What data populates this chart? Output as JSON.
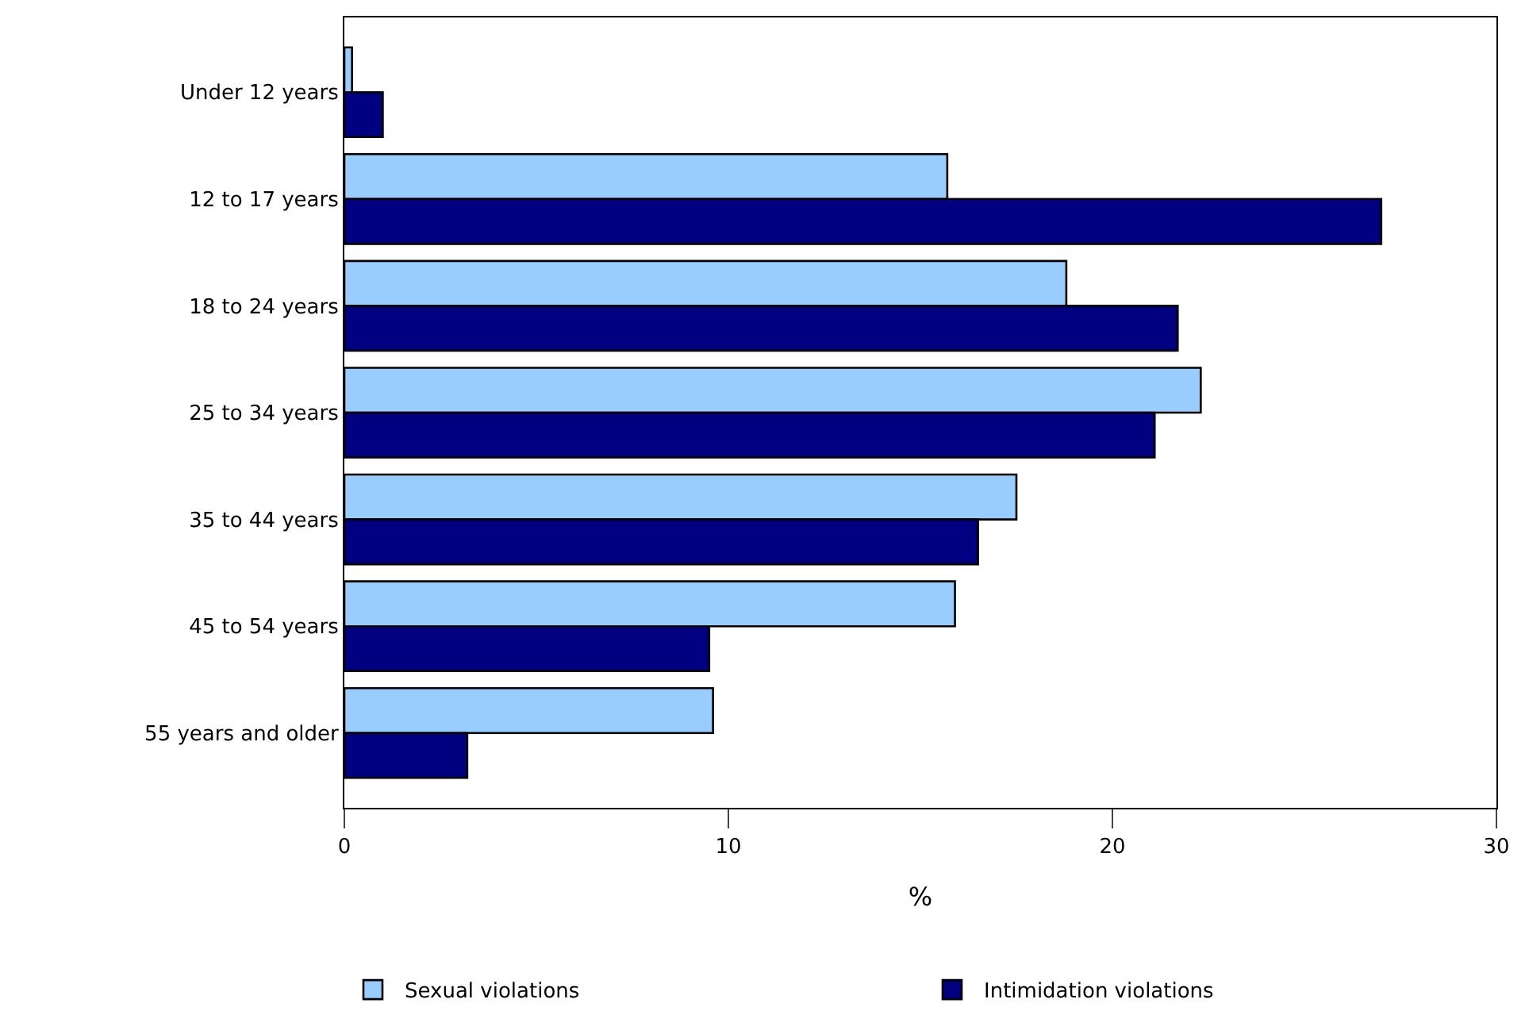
{
  "chart_data": {
    "type": "bar",
    "orientation": "horizontal",
    "xlabel": "%",
    "categories": [
      "Under 12 years",
      "12 to 17 years",
      "18 to 24 years",
      "25 to 34 years",
      "35 to 44 years",
      "45 to 54 years",
      "55 years and older"
    ],
    "series": [
      {
        "name": "Sexual violations",
        "color": "#99ccff",
        "values": [
          0.2,
          15.7,
          18.8,
          22.3,
          17.5,
          15.9,
          9.6
        ]
      },
      {
        "name": "Intimidation violations",
        "color": "#000080",
        "values": [
          1.0,
          27.0,
          21.7,
          21.1,
          16.5,
          9.5,
          3.2
        ]
      }
    ],
    "xlim": [
      0,
      30
    ],
    "xticks": [
      0,
      10,
      20,
      30
    ],
    "grid": false,
    "legend": "bottom"
  }
}
